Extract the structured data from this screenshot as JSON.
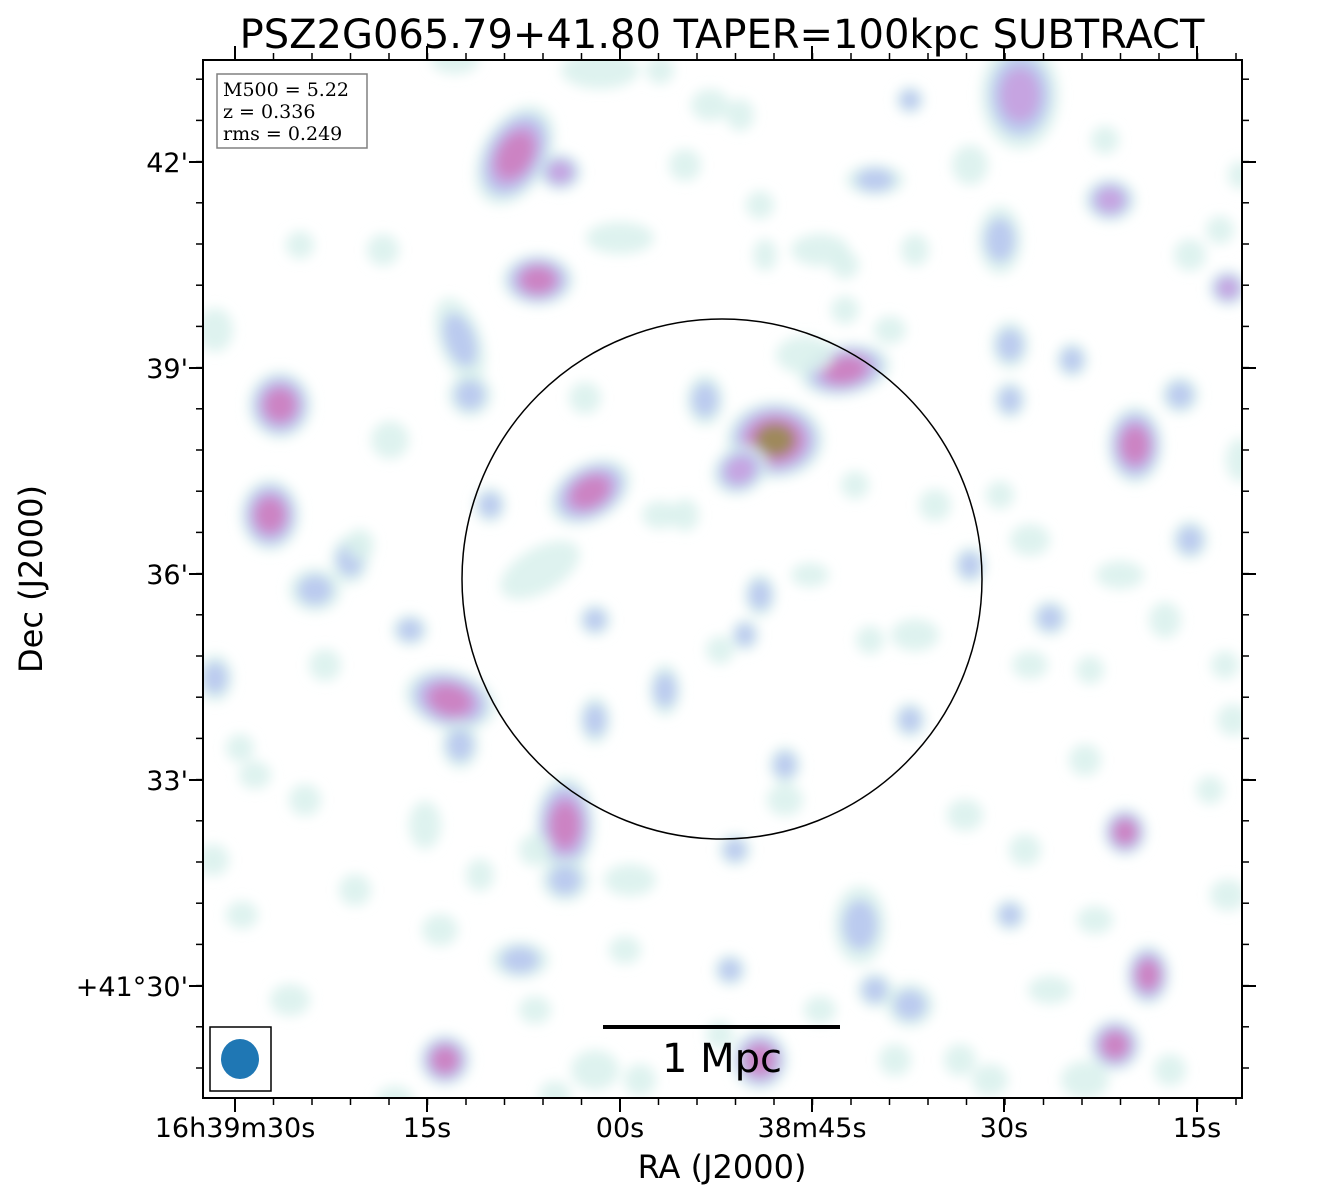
{
  "chart_data": {
    "type": "heatmap",
    "title": "PSZ2G065.79+41.80 TAPER=100kpc SUBTRACT",
    "xlabel": "RA (J2000)",
    "ylabel": "Dec (J2000)",
    "x_ticks": [
      "16h39m30s",
      "15s",
      "00s",
      "38m45s",
      "30s",
      "15s"
    ],
    "y_ticks": [
      "+41°30'",
      "33'",
      "36'",
      "39'",
      "42'"
    ],
    "info_box": [
      "M500 = 5.22",
      "z = 0.336",
      "rms = 0.249"
    ],
    "scalebar_label": "1 Mpc",
    "colors": {
      "level1": "#d8f0ec",
      "level2": "#b8c8f0",
      "level3": "#c8a0e0",
      "level4": "#cc80c0",
      "core": "#9a8a50",
      "beam": "#1f77b4",
      "circle": "#000000"
    }
  }
}
